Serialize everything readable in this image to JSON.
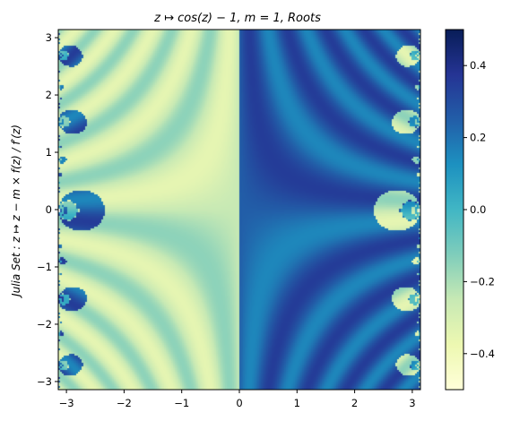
{
  "chart_data": {
    "type": "heatmap",
    "title": "z ↦ cos(z) − 1, m = 1, Roots",
    "xlabel": "",
    "ylabel": "Julia Set : z ↦ z − m × f(z) / f′(z)",
    "xlim": [
      -3.14159,
      3.14159
    ],
    "ylim": [
      -3.14159,
      3.14159
    ],
    "xticks": [
      -3,
      -2,
      -1,
      0,
      1,
      2,
      3
    ],
    "yticks": [
      -3,
      -2,
      -1,
      0,
      1,
      2,
      3
    ],
    "xtick_labels": [
      "−3",
      "−2",
      "−1",
      "0",
      "1",
      "2",
      "3"
    ],
    "ytick_labels": [
      "−3",
      "−2",
      "−1",
      "0",
      "1",
      "2",
      "3"
    ],
    "colorbar": {
      "colormap": "YlGnBu",
      "vmin": -0.5,
      "vmax": 0.5,
      "ticks": [
        -0.4,
        -0.2,
        0.0,
        0.2,
        0.4
      ],
      "tick_labels": [
        "−0.4",
        "−0.2",
        "0.0",
        "0.2",
        "0.4"
      ]
    },
    "grid": false
  }
}
